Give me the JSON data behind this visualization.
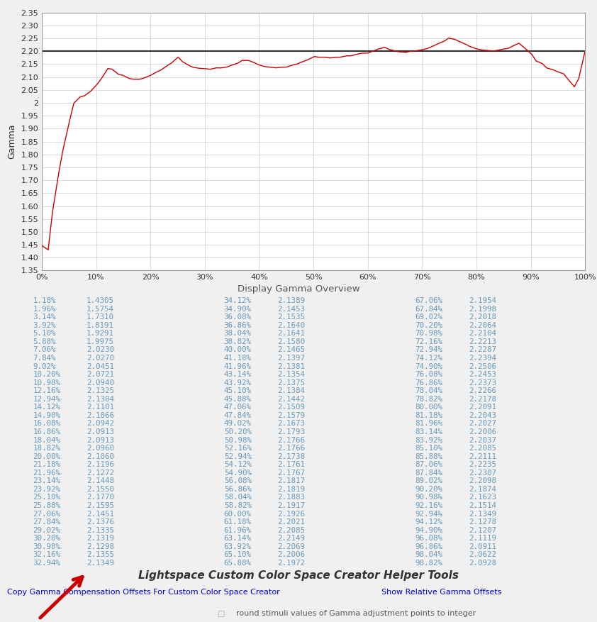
{
  "chart_background": "#f0f0f0",
  "plot_background": "#ffffff",
  "reference_line_y": 2.2,
  "reference_line_color": "#333333",
  "curve_color": "#cc0000",
  "ylabel": "Gamma",
  "ylim": [
    1.35,
    2.35
  ],
  "yticks": [
    1.35,
    1.4,
    1.45,
    1.5,
    1.55,
    1.6,
    1.65,
    1.7,
    1.75,
    1.8,
    1.85,
    1.9,
    1.95,
    2.0,
    2.05,
    2.1,
    2.15,
    2.2,
    2.25,
    2.3,
    2.35
  ],
  "xtick_labels": [
    "0%",
    "10%",
    "20%",
    "30%",
    "40%",
    "50%",
    "60%",
    "70%",
    "80%",
    "90%",
    "100%"
  ],
  "xtick_positions": [
    0.0,
    0.1,
    0.2,
    0.3,
    0.4,
    0.5,
    0.6,
    0.7,
    0.8,
    0.9,
    1.0
  ],
  "table_title": "Display Gamma Overview",
  "table_title_color": "#555555",
  "table_data": [
    [
      "1.18%",
      "1.4305",
      "34.12%",
      "2.1389",
      "67.06%",
      "2.1954"
    ],
    [
      "1.96%",
      "1.5754",
      "34.90%",
      "2.1453",
      "67.84%",
      "2.1998"
    ],
    [
      "3.14%",
      "1.7310",
      "36.08%",
      "2.1535",
      "69.02%",
      "2.2018"
    ],
    [
      "3.92%",
      "1.8191",
      "36.86%",
      "2.1640",
      "70.20%",
      "2.2064"
    ],
    [
      "5.10%",
      "1.9291",
      "38.04%",
      "2.1641",
      "70.98%",
      "2.2104"
    ],
    [
      "5.88%",
      "1.9975",
      "38.82%",
      "2.1580",
      "72.16%",
      "2.2213"
    ],
    [
      "7.06%",
      "2.0230",
      "40.00%",
      "2.1465",
      "72.94%",
      "2.2287"
    ],
    [
      "7.84%",
      "2.0270",
      "41.18%",
      "2.1397",
      "74.12%",
      "2.2394"
    ],
    [
      "9.02%",
      "2.0451",
      "41.96%",
      "2.1381",
      "74.90%",
      "2.2506"
    ],
    [
      "10.20%",
      "2.0721",
      "43.14%",
      "2.1354",
      "76.08%",
      "2.2453"
    ],
    [
      "10.98%",
      "2.0940",
      "43.92%",
      "2.1375",
      "76.86%",
      "2.2373"
    ],
    [
      "12.16%",
      "2.1325",
      "45.10%",
      "2.1384",
      "78.04%",
      "2.2266"
    ],
    [
      "12.94%",
      "2.1304",
      "45.88%",
      "2.1442",
      "78.82%",
      "2.2178"
    ],
    [
      "14.12%",
      "2.1101",
      "47.06%",
      "2.1509",
      "80.00%",
      "2.2091"
    ],
    [
      "14.90%",
      "2.1066",
      "47.84%",
      "2.1579",
      "81.18%",
      "2.2043"
    ],
    [
      "16.08%",
      "2.0942",
      "49.02%",
      "2.1673",
      "81.96%",
      "2.2027"
    ],
    [
      "16.86%",
      "2.0913",
      "50.20%",
      "2.1793",
      "83.14%",
      "2.2006"
    ],
    [
      "18.04%",
      "2.0913",
      "50.98%",
      "2.1766",
      "83.92%",
      "2.2037"
    ],
    [
      "18.82%",
      "2.0960",
      "52.16%",
      "2.1766",
      "85.10%",
      "2.2085"
    ],
    [
      "20.00%",
      "2.1060",
      "52.94%",
      "2.1738",
      "85.88%",
      "2.2111"
    ],
    [
      "21.18%",
      "2.1196",
      "54.12%",
      "2.1761",
      "87.06%",
      "2.2235"
    ],
    [
      "21.96%",
      "2.1272",
      "54.90%",
      "2.1767",
      "87.84%",
      "2.2307"
    ],
    [
      "23.14%",
      "2.1448",
      "56.08%",
      "2.1817",
      "89.02%",
      "2.2098"
    ],
    [
      "23.92%",
      "2.1550",
      "56.86%",
      "2.1819",
      "90.20%",
      "2.1874"
    ],
    [
      "25.10%",
      "2.1770",
      "58.04%",
      "2.1883",
      "90.98%",
      "2.1623"
    ],
    [
      "25.88%",
      "2.1595",
      "58.82%",
      "2.1917",
      "92.16%",
      "2.1514"
    ],
    [
      "27.06%",
      "2.1451",
      "60.00%",
      "2.1926",
      "92.94%",
      "2.1349"
    ],
    [
      "27.84%",
      "2.1376",
      "61.18%",
      "2.2021",
      "94.12%",
      "2.1278"
    ],
    [
      "29.02%",
      "2.1335",
      "61.96%",
      "2.2085",
      "94.90%",
      "2.1207"
    ],
    [
      "30.20%",
      "2.1319",
      "63.14%",
      "2.2149",
      "96.08%",
      "2.1119"
    ],
    [
      "30.98%",
      "2.1298",
      "63.92%",
      "2.2069",
      "96.86%",
      "2.0911"
    ],
    [
      "32.16%",
      "2.1355",
      "65.10%",
      "2.2006",
      "98.04%",
      "2.0622"
    ],
    [
      "32.94%",
      "2.1349",
      "65.88%",
      "2.1972",
      "98.82%",
      "2.0928"
    ]
  ],
  "table_text_color": "#6699bb",
  "footer_title": "Lightspace Custom Color Space Creator Helper Tools",
  "footer_title_color": "#333333",
  "link1_text": "Copy Gamma Compensation Offsets For Custom Color Space Creator",
  "link2_text": "Show Relative Gamma Offsets",
  "link_color": "#0000cc",
  "checkbox_text": "round stimuli values of Gamma adjustment points to integer",
  "checkbox_color": "#555555",
  "arrow_color": "#cc0000",
  "curve_x": [
    0.0,
    0.0118,
    0.0196,
    0.0314,
    0.0392,
    0.051,
    0.0588,
    0.0706,
    0.0784,
    0.0902,
    0.102,
    0.1098,
    0.1216,
    0.1294,
    0.1412,
    0.149,
    0.1608,
    0.1686,
    0.1804,
    0.1882,
    0.2,
    0.2118,
    0.2196,
    0.2314,
    0.2392,
    0.251,
    0.2588,
    0.2706,
    0.2784,
    0.2902,
    0.302,
    0.3098,
    0.3216,
    0.3294,
    0.3412,
    0.349,
    0.3608,
    0.3686,
    0.3804,
    0.3882,
    0.4,
    0.4118,
    0.4196,
    0.4314,
    0.4392,
    0.451,
    0.4588,
    0.4706,
    0.4784,
    0.4902,
    0.502,
    0.5098,
    0.5216,
    0.5294,
    0.5412,
    0.549,
    0.5608,
    0.5686,
    0.5804,
    0.5882,
    0.6,
    0.6118,
    0.6196,
    0.6314,
    0.6392,
    0.651,
    0.6588,
    0.6706,
    0.6784,
    0.6902,
    0.702,
    0.7098,
    0.7216,
    0.7294,
    0.7412,
    0.749,
    0.7608,
    0.7686,
    0.7804,
    0.7882,
    0.8,
    0.8118,
    0.8196,
    0.8314,
    0.8392,
    0.851,
    0.8588,
    0.8706,
    0.8784,
    0.8902,
    0.902,
    0.9098,
    0.9216,
    0.9294,
    0.9412,
    0.949,
    0.9608,
    0.9686,
    0.9804,
    0.9882,
    1.0
  ],
  "curve_y": [
    1.447,
    1.4305,
    1.5754,
    1.731,
    1.8191,
    1.9291,
    1.9975,
    2.023,
    2.027,
    2.0451,
    2.0721,
    2.094,
    2.1325,
    2.1304,
    2.1101,
    2.1066,
    2.0942,
    2.0913,
    2.0913,
    2.096,
    2.106,
    2.1196,
    2.1272,
    2.1448,
    2.155,
    2.177,
    2.1595,
    2.1451,
    2.1376,
    2.1335,
    2.1319,
    2.1298,
    2.1355,
    2.1349,
    2.1389,
    2.1453,
    2.1535,
    2.164,
    2.1641,
    2.158,
    2.1465,
    2.1397,
    2.1381,
    2.1354,
    2.1375,
    2.1384,
    2.1442,
    2.1509,
    2.1579,
    2.1673,
    2.1793,
    2.1766,
    2.1766,
    2.1738,
    2.1761,
    2.1767,
    2.1817,
    2.1819,
    2.1883,
    2.1917,
    2.1926,
    2.2021,
    2.2085,
    2.2149,
    2.2069,
    2.2006,
    2.1972,
    2.1954,
    2.1998,
    2.2018,
    2.2064,
    2.2104,
    2.2213,
    2.2287,
    2.2394,
    2.2506,
    2.2453,
    2.2373,
    2.2266,
    2.2178,
    2.2091,
    2.2043,
    2.2027,
    2.2006,
    2.2037,
    2.2085,
    2.2111,
    2.2235,
    2.2307,
    2.2098,
    2.1874,
    2.1623,
    2.1514,
    2.1349,
    2.1278,
    2.1207,
    2.1119,
    2.0911,
    2.0622,
    2.0928,
    2.2
  ]
}
